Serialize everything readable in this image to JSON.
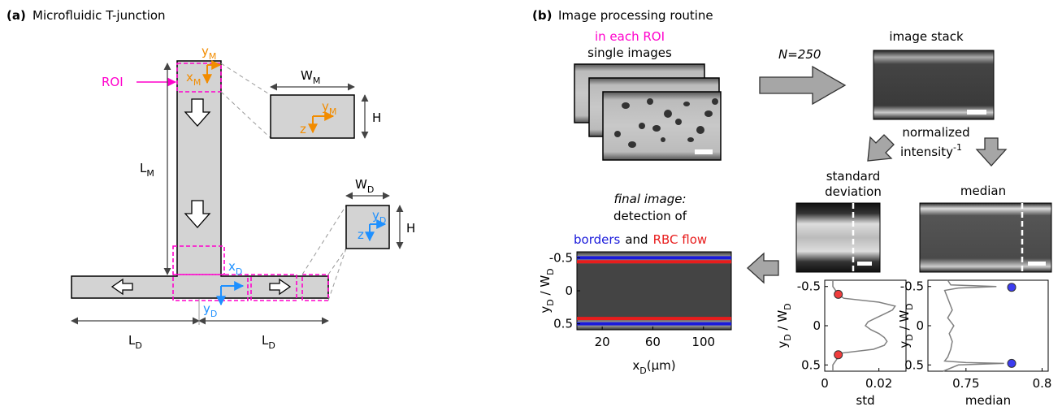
{
  "panel_a": {
    "label": "(a)",
    "title": "Microfluidic T-junction",
    "roi": "ROI",
    "y_m": [
      "y",
      "M"
    ],
    "x_m": [
      "x",
      "M"
    ],
    "w_m": [
      "W",
      "M"
    ],
    "h_top": "H",
    "y_m_box": [
      "y",
      "M"
    ],
    "z_top": "z",
    "l_m": [
      "L",
      "M"
    ],
    "w_d": [
      "W",
      "D"
    ],
    "h_bottom": "H",
    "y_d_box": [
      "y",
      "D"
    ],
    "z_bottom": "z",
    "x_d": [
      "x",
      "D"
    ],
    "y_d": [
      "y",
      "D"
    ],
    "l_d_left": [
      "L",
      "D"
    ],
    "l_d_right": [
      "L",
      "D"
    ]
  },
  "panel_b": {
    "label": "(b)",
    "title": "Image processing routine",
    "in_each_roi": "in each ROI",
    "single_images": "single images",
    "n": "N=250",
    "image_stack": "image stack",
    "normalized": "normalized",
    "intensity": [
      "intensity",
      "-1"
    ],
    "std_title": [
      "standard",
      "deviation"
    ],
    "median_title": "median",
    "final_lines": [
      "final image:",
      "detection of"
    ],
    "legend": [
      {
        "text": "borders",
        "color": "#1a1adb"
      },
      {
        "text": "and",
        "color": "#000000"
      },
      {
        "text": "RBC flow",
        "color": "#e81c1c"
      }
    ]
  },
  "chart_data": [
    {
      "type": "image-profile",
      "xlim": [
        0,
        122
      ],
      "xticks": [
        20,
        60,
        100
      ],
      "ylim": [
        -0.59,
        0.59
      ],
      "yticks": [
        -0.5,
        0,
        0.5
      ],
      "yreverse": true,
      "xlabel": [
        "x",
        "D",
        "(μm)"
      ],
      "ylabel": [
        "y",
        "D",
        " / W",
        "D"
      ],
      "borders": {
        "color": "#1a1adb",
        "values": [
          -0.5,
          0.5
        ]
      },
      "rbc_flow": {
        "color": "#e81c1c",
        "values": [
          -0.44,
          0.42
        ]
      }
    },
    {
      "type": "profile",
      "xlim": [
        0,
        0.03
      ],
      "xticks": [
        0,
        0.02
      ],
      "ylim": [
        -0.58,
        0.58
      ],
      "yticks": [
        -0.5,
        0,
        0.5
      ],
      "yreverse": true,
      "xlabel": "std",
      "ylabel": [
        "y",
        "D",
        " / W",
        "D"
      ],
      "color": "#808080",
      "profile": [
        -0.58,
        -0.5,
        -0.45,
        -0.4,
        -0.35,
        -0.3,
        -0.25,
        -0.2,
        -0.15,
        -0.1,
        -0.05,
        0,
        0.05,
        0.1,
        0.15,
        0.2,
        0.25,
        0.3,
        0.35,
        0.4,
        0.45,
        0.5,
        0.58
      ],
      "values": [
        0.003,
        0.003,
        0.004,
        0.005,
        0.007,
        0.02,
        0.026,
        0.025,
        0.022,
        0.019,
        0.016,
        0.015,
        0.017,
        0.02,
        0.022,
        0.023,
        0.022,
        0.018,
        0.006,
        0.005,
        0.004,
        0.003,
        0.003
      ],
      "points": {
        "color": "#f03c3c",
        "x": [
          0.005,
          0.005
        ],
        "y": [
          -0.4,
          0.37
        ]
      }
    },
    {
      "type": "profile",
      "xlim": [
        0.725,
        0.804
      ],
      "xticks": [
        0.75,
        0.8
      ],
      "ylim": [
        -0.58,
        0.58
      ],
      "yticks": [
        -0.5,
        0,
        0.5
      ],
      "yreverse": true,
      "xlabel": "median",
      "ylabel": [
        "y",
        "D",
        " / W",
        "D"
      ],
      "color": "#808080",
      "profile": [
        -0.58,
        -0.52,
        -0.5,
        -0.48,
        -0.45,
        -0.4,
        -0.3,
        -0.2,
        -0.1,
        0,
        0.1,
        0.2,
        0.3,
        0.4,
        0.45,
        0.47,
        0.48,
        0.5,
        0.58
      ],
      "values": [
        0.738,
        0.74,
        0.77,
        0.745,
        0.736,
        0.737,
        0.739,
        0.741,
        0.738,
        0.742,
        0.739,
        0.741,
        0.74,
        0.738,
        0.736,
        0.75,
        0.775,
        0.745,
        0.735
      ],
      "points": {
        "color": "#3c3cf0",
        "x": [
          0.78,
          0.78
        ],
        "y": [
          -0.49,
          0.48
        ]
      }
    }
  ]
}
